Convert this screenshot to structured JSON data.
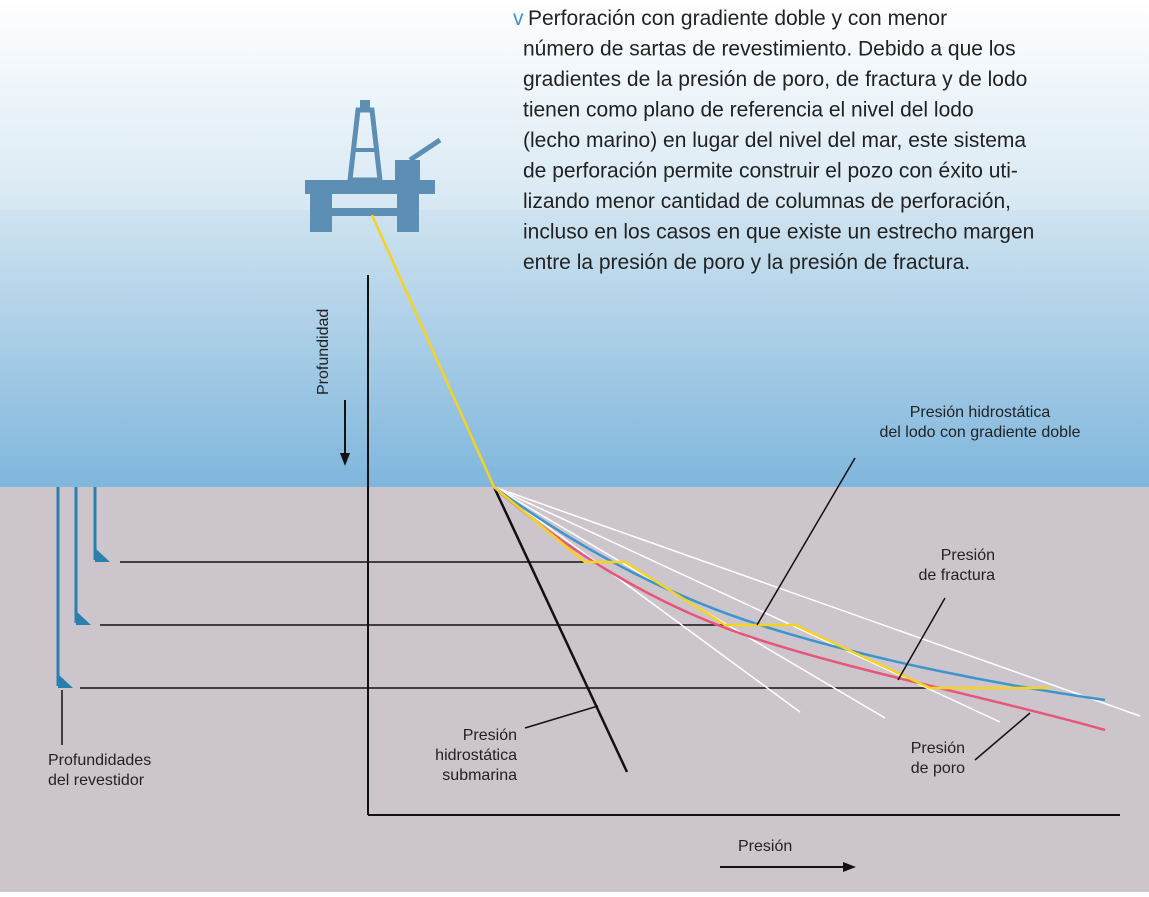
{
  "description": {
    "marker": "v",
    "lines": [
      "Perforación con gradiente doble y con menor",
      "número de sartas de revestimiento. Debido a que los",
      "gradientes de la presión de poro, de fractura y de lodo",
      "tienen como plano de referencia el nivel del lodo",
      "(lecho marino) en lugar del nivel del mar, este sistema",
      "de perforación permite construir el pozo con éxito uti-",
      "lizando menor cantidad de columnas de perforación,",
      "incluso en los casos en que existe un estrecho margen",
      "entre la presión de poro y la presión de fractura."
    ]
  },
  "axes": {
    "y_label": "Profundidad",
    "x_label": "Presión"
  },
  "labels": {
    "mud_gradient": [
      "Presión hidrostática",
      "del lodo con gradiente doble"
    ],
    "fracture": [
      "Presión",
      "de fractura"
    ],
    "subsea_hydrostatic": [
      "Presión",
      "hidrostática",
      "submarina"
    ],
    "pore": [
      "Presión",
      "de poro"
    ],
    "casing_depths": [
      "Profundidades",
      "del revestidor"
    ]
  }
}
